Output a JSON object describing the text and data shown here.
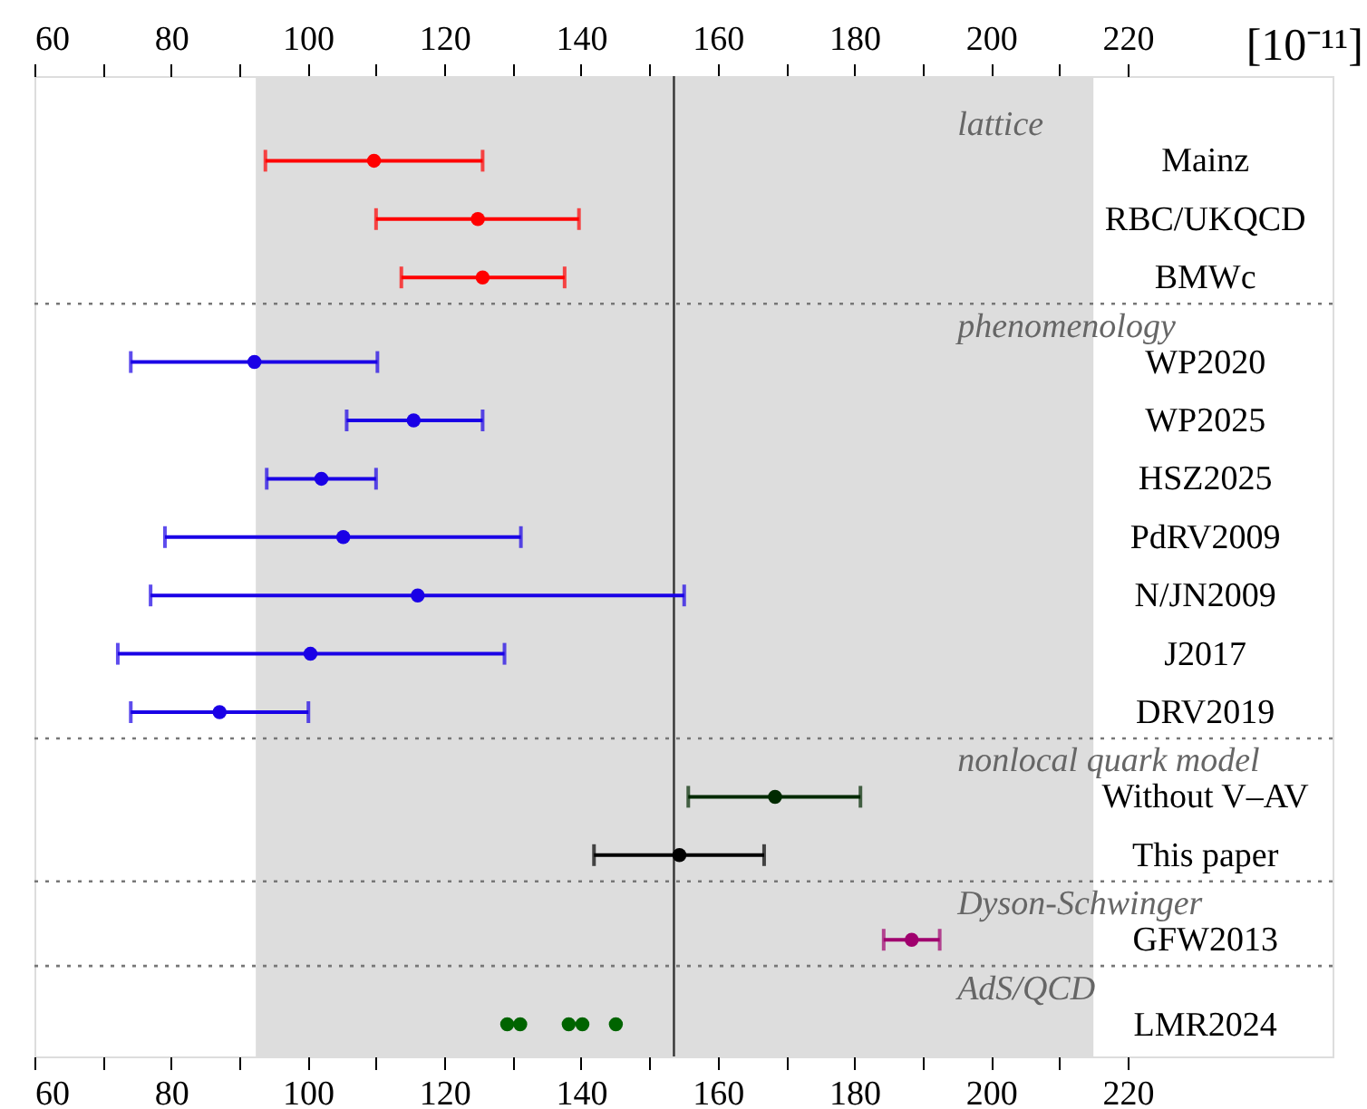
{
  "chart_data": {
    "type": "scatter",
    "orientation": "horizontal",
    "marker": "circle",
    "grid": false,
    "legend": false,
    "xlabel": "[10⁻¹¹]",
    "categories": [
      "Mainz",
      "RBC/UKQCD",
      "BMWc",
      "WP2020",
      "WP2025",
      "HSZ2025",
      "PdRV2009",
      "N/JN2009",
      "J2017",
      "DRV2019",
      "Without V–AV",
      "This paper",
      "GFW2013",
      "LMR2024"
    ],
    "xlim": [
      60,
      250
    ],
    "xticks": [
      60,
      {
        "value": 70,
        "label": null
      },
      80,
      {
        "value": 90,
        "label": null
      },
      100,
      {
        "value": 110,
        "label": null
      },
      120,
      {
        "value": 130,
        "label": null
      },
      140,
      {
        "value": 150,
        "label": null
      },
      160,
      {
        "value": 170,
        "label": null
      },
      180,
      {
        "value": 190,
        "label": null
      },
      200,
      {
        "value": 210,
        "label": null
      },
      220
    ],
    "x2lim": [
      60,
      250
    ],
    "x2ticks": [
      60,
      {
        "value": 70,
        "label": null
      },
      80,
      {
        "value": 90,
        "label": null
      },
      100,
      {
        "value": 110,
        "label": null
      },
      120,
      {
        "value": 130,
        "label": null
      },
      140,
      {
        "value": 150,
        "label": null
      },
      160,
      {
        "value": 170,
        "label": null
      },
      180,
      {
        "value": 190,
        "label": null
      },
      200,
      {
        "value": 210,
        "label": null
      },
      220
    ],
    "bands": [
      {
        "axis": "x",
        "from": 92.4,
        "to": 215,
        "color": "#dddddd"
      }
    ],
    "ref_lines": [
      {
        "axis": "x",
        "value": 153.6,
        "color": "#333333",
        "line_style": "solid"
      }
    ],
    "annotations": [
      "lattice",
      "phenomenology",
      "nonlocal quark model",
      "Dyson-Schwinger",
      "AdS/QCD"
    ],
    "series": [
      {
        "color": "#ff0000",
        "values": [
          109.7,
          124.9,
          125.6,
          null,
          null,
          null,
          null,
          null,
          null,
          null,
          null,
          null,
          null,
          null
        ],
        "errors": [
          [
            93.8,
            125.6
          ],
          [
            110.0,
            139.7
          ],
          [
            113.7,
            137.6
          ],
          null,
          null,
          null,
          null,
          null,
          null,
          null,
          null,
          null,
          null,
          null
        ]
      },
      {
        "color": "#1a00e6",
        "values": [
          null,
          null,
          null,
          92.2,
          115.5,
          102.0,
          105.2,
          116.1,
          100.4,
          87.1,
          null,
          null,
          null,
          null
        ],
        "errors": [
          null,
          null,
          null,
          [
            74.1,
            110.2
          ],
          [
            105.7,
            125.6
          ],
          [
            94.0,
            110.0
          ],
          [
            79.1,
            131.2
          ],
          [
            77.0,
            155.1
          ],
          [
            72.2,
            128.8
          ],
          [
            74.1,
            100.1
          ],
          null,
          null,
          null,
          null
        ]
      },
      {
        "color": "#002a00",
        "colors": [
          null,
          null,
          null,
          null,
          null,
          null,
          null,
          null,
          null,
          null,
          null,
          "#000000",
          null,
          null
        ],
        "values": [
          null,
          null,
          null,
          null,
          null,
          null,
          null,
          null,
          null,
          null,
          168.4,
          154.4,
          null,
          null
        ],
        "errors": [
          null,
          null,
          null,
          null,
          null,
          null,
          null,
          null,
          null,
          null,
          [
            155.7,
            180.9
          ],
          [
            141.9,
            166.8
          ],
          null,
          null
        ]
      },
      {
        "color": "#a0006e",
        "values": [
          null,
          null,
          null,
          null,
          null,
          null,
          null,
          null,
          null,
          null,
          null,
          null,
          188.4,
          null
        ],
        "errors": [
          null,
          null,
          null,
          null,
          null,
          null,
          null,
          null,
          null,
          null,
          null,
          null,
          [
            184.3,
            192.5
          ],
          null
        ]
      },
      {
        "color": "#006400",
        "values": [
          null,
          null,
          null,
          null,
          null,
          null,
          null,
          null,
          null,
          null,
          null,
          null,
          null,
          129.2
        ]
      },
      {
        "color": "#006400",
        "values": [
          null,
          null,
          null,
          null,
          null,
          null,
          null,
          null,
          null,
          null,
          null,
          null,
          null,
          131.1
        ]
      },
      {
        "color": "#006400",
        "values": [
          null,
          null,
          null,
          null,
          null,
          null,
          null,
          null,
          null,
          null,
          null,
          null,
          null,
          138.2
        ]
      },
      {
        "color": "#006400",
        "values": [
          null,
          null,
          null,
          null,
          null,
          null,
          null,
          null,
          null,
          null,
          null,
          null,
          null,
          140.2
        ]
      },
      {
        "color": "#006400",
        "values": [
          null,
          null,
          null,
          null,
          null,
          null,
          null,
          null,
          null,
          null,
          null,
          null,
          null,
          145.1
        ]
      }
    ]
  }
}
